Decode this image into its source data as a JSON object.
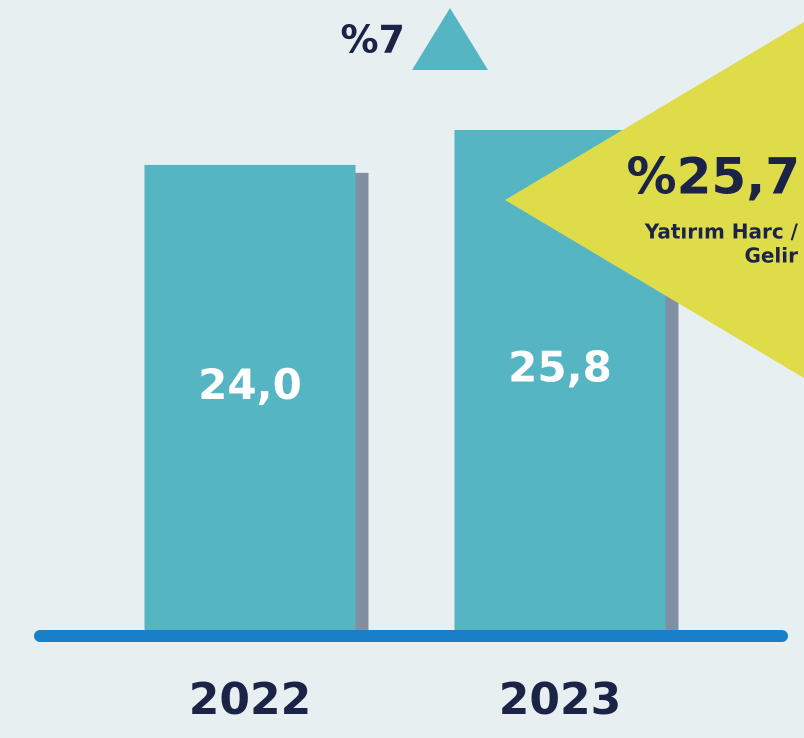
{
  "chart_data": {
    "type": "bar",
    "categories": [
      "2022",
      "2023"
    ],
    "values": [
      24.0,
      25.8
    ],
    "value_labels": [
      "24,0",
      "25,8"
    ],
    "color": "#56b5c3",
    "annotations": {
      "growth": "%7",
      "ratio_value": "%25,7",
      "ratio_label": [
        "Yatırım Harc /",
        "Gelir"
      ]
    }
  }
}
